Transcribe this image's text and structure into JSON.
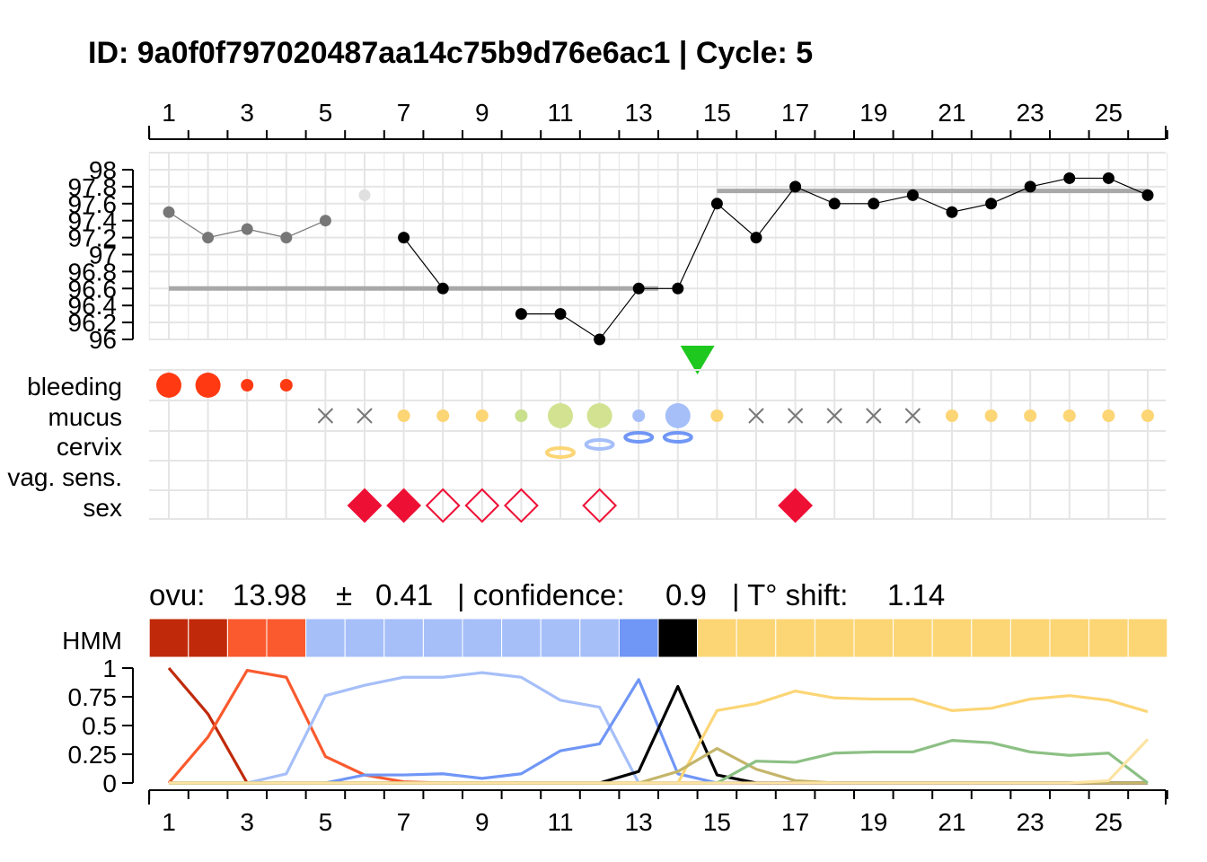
{
  "title": "ID: 9a0f0f797020487aa14c75b9d76e6ac1 | Cycle: 5",
  "subtitle": {
    "ovu_label": "ovu:",
    "ovu_value": "13.98",
    "pm": "±",
    "ovu_sd": "0.41",
    "confidence_label": "| confidence:",
    "confidence_value": "0.9",
    "shift_label": "| T° shift:",
    "shift_value": "1.14"
  },
  "row_labels": {
    "bleeding": "bleeding",
    "mucus": "mucus",
    "cervix": "cervix",
    "vag_sens": "vag. sens.",
    "sex": "sex",
    "hmm": "HMM"
  },
  "colors": {
    "grid": "#e5e5e5",
    "bleeding": "#ff3a12",
    "sex": "#ee0f35",
    "ovulation_marker": "#1ec81e",
    "baseline": "#a8a8a8",
    "mucus_x": "#777777",
    "hmm_states": [
      "#c02a0a",
      "#c02a0a",
      "#fa5a2e",
      "#fa5a2e",
      "#a6bff9",
      "#a6bff9",
      "#a6bff9",
      "#a6bff9",
      "#a6bff9",
      "#a6bff9",
      "#a6bff9",
      "#a6bff9",
      "#7096f6",
      "#000000",
      "#fcd575",
      "#fcd575",
      "#fcd575",
      "#fcd575",
      "#fcd575",
      "#fcd575",
      "#fcd575",
      "#fcd575",
      "#fcd575",
      "#fcd575",
      "#fcd575",
      "#fcd575"
    ]
  },
  "chart_data": [
    {
      "type": "line",
      "name": "temperature",
      "x_ticks": [
        "1",
        "3",
        "5",
        "7",
        "9",
        "11",
        "13",
        "15",
        "17",
        "19",
        "21",
        "23",
        "25"
      ],
      "y_ticks": [
        "96",
        "96.2",
        "96.4",
        "96.6",
        "96.8",
        "97",
        "97.2",
        "97.4",
        "97.6",
        "97.8",
        "98"
      ],
      "ylim": [
        96,
        98
      ],
      "xlim": [
        1,
        26
      ],
      "points": [
        {
          "day": 1,
          "temp": 97.5,
          "style": "gray"
        },
        {
          "day": 2,
          "temp": 97.2,
          "style": "gray"
        },
        {
          "day": 3,
          "temp": 97.3,
          "style": "gray"
        },
        {
          "day": 4,
          "temp": 97.2,
          "style": "gray"
        },
        {
          "day": 5,
          "temp": 97.4,
          "style": "gray"
        },
        {
          "day": 6,
          "temp": 97.7,
          "style": "excluded"
        },
        {
          "day": 7,
          "temp": 97.2,
          "style": "black"
        },
        {
          "day": 8,
          "temp": 96.6,
          "style": "black"
        },
        {
          "day": 10,
          "temp": 96.3,
          "style": "black"
        },
        {
          "day": 11,
          "temp": 96.3,
          "style": "black"
        },
        {
          "day": 12,
          "temp": 96.0,
          "style": "black"
        },
        {
          "day": 13,
          "temp": 96.6,
          "style": "black"
        },
        {
          "day": 14,
          "temp": 96.6,
          "style": "black"
        },
        {
          "day": 15,
          "temp": 97.6,
          "style": "black"
        },
        {
          "day": 16,
          "temp": 97.2,
          "style": "black"
        },
        {
          "day": 17,
          "temp": 97.8,
          "style": "black"
        },
        {
          "day": 18,
          "temp": 97.6,
          "style": "black"
        },
        {
          "day": 19,
          "temp": 97.6,
          "style": "black"
        },
        {
          "day": 20,
          "temp": 97.7,
          "style": "black"
        },
        {
          "day": 21,
          "temp": 97.5,
          "style": "black"
        },
        {
          "day": 22,
          "temp": 97.6,
          "style": "black"
        },
        {
          "day": 23,
          "temp": 97.8,
          "style": "black"
        },
        {
          "day": 24,
          "temp": 97.9,
          "style": "black"
        },
        {
          "day": 25,
          "temp": 97.9,
          "style": "black"
        },
        {
          "day": 26,
          "temp": 97.7,
          "style": "black"
        }
      ],
      "line_segments": [
        [
          1,
          2,
          3,
          4,
          5
        ],
        [
          7,
          8
        ],
        [
          10,
          11,
          12,
          13,
          14,
          15,
          16,
          17,
          18,
          19,
          20,
          21,
          22,
          23,
          24,
          25,
          26
        ]
      ],
      "baselines": [
        {
          "from": 1,
          "to": 13.5,
          "temp": 96.6
        },
        {
          "from": 15,
          "to": 26,
          "temp": 97.75
        }
      ],
      "ovulation_marker_day": 14.5
    },
    {
      "type": "scatter",
      "name": "observations",
      "bleeding": [
        {
          "day": 1,
          "size": "large"
        },
        {
          "day": 2,
          "size": "large"
        },
        {
          "day": 3,
          "size": "small"
        },
        {
          "day": 4,
          "size": "small"
        }
      ],
      "mucus": [
        {
          "day": 5,
          "kind": "x"
        },
        {
          "day": 6,
          "kind": "x"
        },
        {
          "day": 7,
          "kind": "dot",
          "size": "small",
          "color": "#fcd575"
        },
        {
          "day": 8,
          "kind": "dot",
          "size": "small",
          "color": "#fcd575"
        },
        {
          "day": 9,
          "kind": "dot",
          "size": "small",
          "color": "#fcd575"
        },
        {
          "day": 10,
          "kind": "dot",
          "size": "small",
          "color": "#c9e08c"
        },
        {
          "day": 11,
          "kind": "dot",
          "size": "large",
          "color": "#d2e291"
        },
        {
          "day": 12,
          "kind": "dot",
          "size": "large",
          "color": "#d2e291"
        },
        {
          "day": 13,
          "kind": "dot",
          "size": "small",
          "color": "#a6bff9"
        },
        {
          "day": 14,
          "kind": "dot",
          "size": "large",
          "color": "#a6bff9"
        },
        {
          "day": 15,
          "kind": "dot",
          "size": "small",
          "color": "#fcd575"
        },
        {
          "day": 16,
          "kind": "x"
        },
        {
          "day": 17,
          "kind": "x"
        },
        {
          "day": 18,
          "kind": "x"
        },
        {
          "day": 19,
          "kind": "x"
        },
        {
          "day": 20,
          "kind": "x"
        },
        {
          "day": 21,
          "kind": "dot",
          "size": "small",
          "color": "#fcd575"
        },
        {
          "day": 22,
          "kind": "dot",
          "size": "small",
          "color": "#fcd575"
        },
        {
          "day": 23,
          "kind": "dot",
          "size": "small",
          "color": "#fcd575"
        },
        {
          "day": 24,
          "kind": "dot",
          "size": "small",
          "color": "#fcd575"
        },
        {
          "day": 25,
          "kind": "dot",
          "size": "small",
          "color": "#fcd575"
        },
        {
          "day": 26,
          "kind": "dot",
          "size": "small",
          "color": "#fcd575"
        }
      ],
      "cervix": [
        {
          "day": 11,
          "color": "#fcd575",
          "level": "low"
        },
        {
          "day": 12,
          "color": "#a6bff9",
          "level": "mid"
        },
        {
          "day": 13,
          "color": "#7096f6",
          "level": "high"
        },
        {
          "day": 14,
          "color": "#7096f6",
          "level": "high"
        }
      ],
      "sex": [
        {
          "day": 6,
          "filled": true
        },
        {
          "day": 7,
          "filled": true
        },
        {
          "day": 8,
          "filled": false
        },
        {
          "day": 9,
          "filled": false
        },
        {
          "day": 10,
          "filled": false
        },
        {
          "day": 12,
          "filled": false
        },
        {
          "day": 17,
          "filled": true
        }
      ]
    },
    {
      "type": "line",
      "name": "state probabilities",
      "ylim": [
        0,
        1
      ],
      "y_ticks": [
        "0",
        "0.25",
        "0.5",
        "0.75",
        "1"
      ],
      "x_ticks": [
        "1",
        "3",
        "5",
        "7",
        "9",
        "11",
        "13",
        "15",
        "17",
        "19",
        "21",
        "23",
        "25"
      ],
      "series": [
        {
          "color": "#c02a0a",
          "values": [
            1,
            0.6,
            0,
            0,
            0,
            0,
            0,
            0,
            0,
            0,
            0,
            0,
            0,
            0,
            0,
            0,
            0,
            0,
            0,
            0,
            0,
            0,
            0,
            0,
            0,
            0
          ]
        },
        {
          "color": "#fa5a2e",
          "values": [
            0,
            0.4,
            0.98,
            0.92,
            0.23,
            0.07,
            0.01,
            0,
            0,
            0,
            0,
            0,
            0,
            0,
            0,
            0,
            0,
            0,
            0,
            0,
            0,
            0,
            0,
            0,
            0,
            0
          ]
        },
        {
          "color": "#a6bff9",
          "values": [
            0,
            0,
            0,
            0.08,
            0.76,
            0.85,
            0.92,
            0.92,
            0.96,
            0.92,
            0.72,
            0.66,
            0,
            0,
            0,
            0,
            0,
            0,
            0,
            0,
            0,
            0,
            0,
            0,
            0,
            0
          ]
        },
        {
          "color": "#7096f6",
          "values": [
            0,
            0,
            0,
            0,
            0,
            0.07,
            0.07,
            0.08,
            0.04,
            0.08,
            0.28,
            0.34,
            0.9,
            0.08,
            0,
            0,
            0,
            0,
            0,
            0,
            0,
            0,
            0,
            0,
            0,
            0
          ]
        },
        {
          "color": "#000000",
          "values": [
            0,
            0,
            0,
            0,
            0,
            0,
            0,
            0,
            0,
            0,
            0,
            0,
            0.1,
            0.84,
            0.07,
            0,
            0,
            0,
            0,
            0,
            0,
            0,
            0,
            0,
            0,
            0
          ]
        },
        {
          "color": "#fcd575",
          "values": [
            0,
            0,
            0,
            0,
            0,
            0,
            0,
            0,
            0,
            0,
            0,
            0,
            0,
            0,
            0.63,
            0.69,
            0.8,
            0.74,
            0.73,
            0.73,
            0.63,
            0.65,
            0.73,
            0.76,
            0.72,
            0.62
          ]
        },
        {
          "color": "#c4b56a",
          "values": [
            0,
            0,
            0,
            0,
            0,
            0,
            0,
            0,
            0,
            0,
            0,
            0,
            0,
            0.1,
            0.3,
            0.12,
            0.02,
            0,
            0,
            0,
            0,
            0,
            0,
            0,
            0,
            0
          ]
        },
        {
          "color": "#8cc084",
          "values": [
            0,
            0,
            0,
            0,
            0,
            0,
            0,
            0,
            0,
            0,
            0,
            0,
            0,
            0,
            0,
            0.19,
            0.18,
            0.26,
            0.27,
            0.27,
            0.37,
            0.35,
            0.27,
            0.24,
            0.26,
            0
          ]
        },
        {
          "color": "#fce3a3",
          "values": [
            0,
            0,
            0,
            0,
            0,
            0,
            0,
            0,
            0,
            0,
            0,
            0,
            0,
            0,
            0,
            0,
            0,
            0,
            0,
            0,
            0,
            0,
            0,
            0,
            0.02,
            0.38
          ]
        }
      ]
    }
  ]
}
